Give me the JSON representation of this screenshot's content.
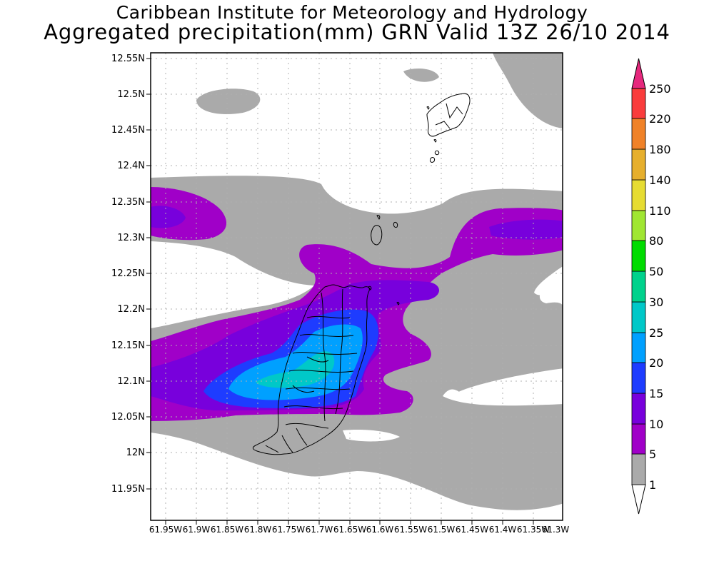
{
  "header": {
    "line1": "Caribbean Institute for Meteorology and Hydrology",
    "line2": "Aggregated precipitation(mm) GRN Valid 13Z 26/10 2014"
  },
  "map": {
    "lat_ticks": [
      "12.55N",
      "12.5N",
      "12.45N",
      "12.4N",
      "12.35N",
      "12.3N",
      "12.25N",
      "12.2N",
      "12.15N",
      "12.1N",
      "12.05N",
      "12N",
      "11.95N"
    ],
    "lon_ticks": [
      "61.95W",
      "61.9W",
      "61.85W",
      "61.8W",
      "61.75W",
      "61.7W",
      "61.65W",
      "61.6W",
      "61.55W",
      "61.5W",
      "61.45W",
      "61.4W",
      "61.35W",
      "61.3W"
    ]
  },
  "colorbar": {
    "levels": [
      "1",
      "5",
      "10",
      "15",
      "20",
      "25",
      "30",
      "50",
      "80",
      "110",
      "140",
      "180",
      "220",
      "250"
    ],
    "colors": [
      "#aaaaaa",
      "#a000c8",
      "#7800dc",
      "#1e3cff",
      "#00a0ff",
      "#00c8c8",
      "#00d28c",
      "#00dc00",
      "#a0e632",
      "#e6dc32",
      "#e6af2d",
      "#f08228",
      "#fa3c3c",
      "#e6287d"
    ]
  },
  "shading_colors": {
    "gray": "#aaaaaa",
    "purple": "#a000c8",
    "violet": "#7800dc",
    "blue": "#1e3cff",
    "skyblue": "#00a0ff",
    "cyan": "#00c8c8"
  }
}
